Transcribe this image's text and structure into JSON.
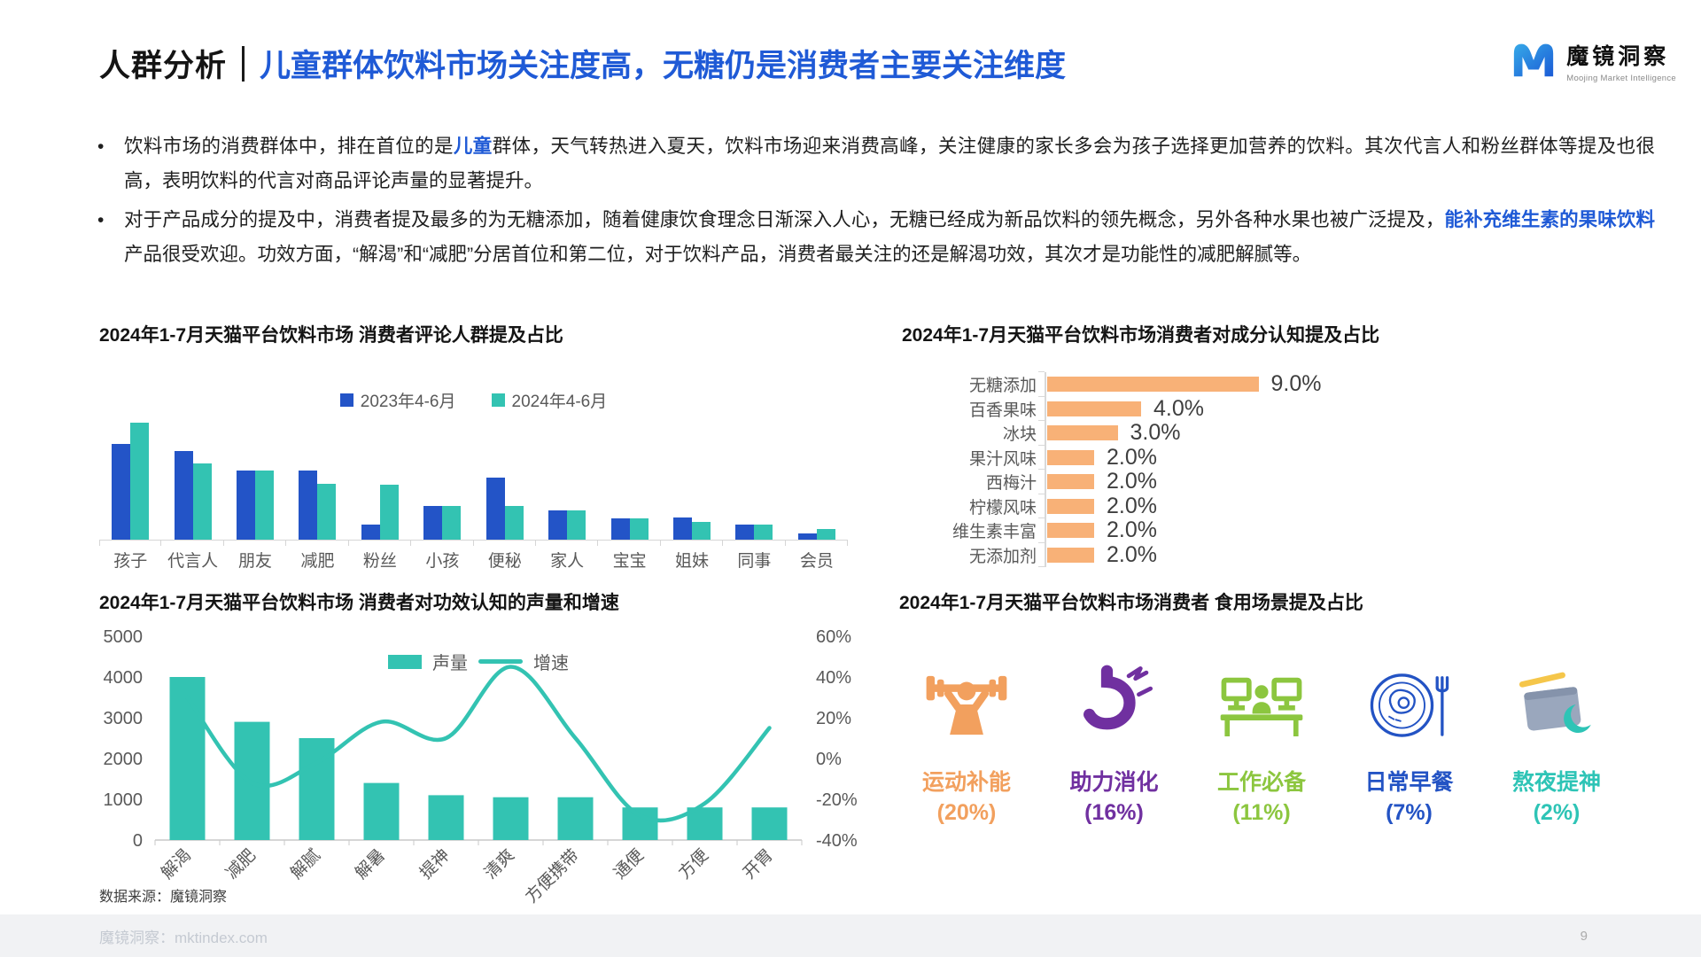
{
  "page": {
    "section_label": "人群分析",
    "title": "儿童群体饮料市场关注度高，无糖仍是消费者主要关注维度",
    "source_note": "数据来源：魔镜洞察",
    "footer_site": "魔镜洞察：mktindex.com",
    "page_number": "9"
  },
  "logo": {
    "name": "魔镜洞察",
    "subtitle": "Moojing Market Intelligence"
  },
  "colors": {
    "accent_blue": "#1F5AD6",
    "bar_blue": "#2354C7",
    "teal": "#33C3B2",
    "orange_bar": "#F8B177",
    "axis_gray": "#D9D9D9",
    "label_gray": "#595959"
  },
  "bullets": [
    {
      "segments": [
        {
          "text": "饮料市场的消费群体中，排在首位的是",
          "hl": false
        },
        {
          "text": "儿童",
          "hl": true
        },
        {
          "text": "群体，天气转热进入夏天，饮料市场迎来消费高峰，关注健康的家长多会为孩子选择更加营养的饮料。其次代言人和粉丝群体等提及也很高，表明饮料的代言对商品评论声量的显著提升。",
          "hl": false
        }
      ]
    },
    {
      "segments": [
        {
          "text": "对于产品成分的提及中，消费者提及最多的为无糖添加，随着健康饮食理念日渐深入人心，无糖已经成为新品饮料的领先概念，另外各种水果也被广泛提及，",
          "hl": false
        },
        {
          "text": "能补充维生素的果味饮料",
          "hl": true
        },
        {
          "text": "产品很受欢迎。功效方面，“解渴”和“减肥”分居首位和第二位，对于饮料产品，消费者最关注的还是解渴功效，其次才是功能性的减肥解腻等。",
          "hl": false
        }
      ]
    }
  ],
  "chart_data": [
    {
      "type": "bar",
      "title": "2024年1-7月天猫平台饮料市场 消费者评论人群提及占比",
      "categories": [
        "孩子",
        "代言人",
        "朋友",
        "减肥",
        "粉丝",
        "小孩",
        "便秘",
        "家人",
        "宝宝",
        "姐妹",
        "同事",
        "会员"
      ],
      "series": [
        {
          "name": "2023年4-6月",
          "color": "#2354C7",
          "values": [
            82,
            76,
            59,
            59,
            13,
            29,
            53,
            25,
            18,
            19,
            13,
            5
          ]
        },
        {
          "name": "2024年4-6月",
          "color": "#33C3B2",
          "values": [
            100,
            65,
            59,
            48,
            47,
            29,
            29,
            25,
            18,
            15,
            13,
            9
          ]
        }
      ],
      "note": "relative mention share, no value axis shown",
      "legend_position": "top-center"
    },
    {
      "type": "bar-horizontal",
      "title": "2024年1-7月天猫平台饮料市场消费者对成分认知提及占比",
      "categories": [
        "无糖添加",
        "百香果味",
        "冰块",
        "果汁风味",
        "西梅汁",
        "柠檬风味",
        "维生素丰富",
        "无添加剂"
      ],
      "values": [
        9.0,
        4.0,
        3.0,
        2.0,
        2.0,
        2.0,
        2.0,
        2.0
      ],
      "labels": [
        "9.0%",
        "4.0%",
        "3.0%",
        "2.0%",
        "2.0%",
        "2.0%",
        "2.0%",
        "2.0%"
      ],
      "color": "#F8B177",
      "xlim": [
        0,
        10
      ]
    },
    {
      "type": "combo",
      "title": "2024年1-7月天猫平台饮料市场 消费者对功效认知的声量和增速",
      "categories": [
        "解渴",
        "减肥",
        "解腻",
        "解暑",
        "提神",
        "清爽",
        "方便携带",
        "通便",
        "方便",
        "开胃"
      ],
      "bar_series": {
        "name": "声量",
        "color": "#33C3B2",
        "values": [
          4000,
          2900,
          2500,
          1400,
          1100,
          1050,
          1050,
          800,
          800,
          800
        ]
      },
      "line_series": {
        "name": "增速",
        "color": "#33C3B2",
        "values": [
          30,
          -12,
          -2,
          18,
          10,
          45,
          10,
          -28,
          -22,
          15
        ]
      },
      "left_axis": {
        "min": 0,
        "max": 5000,
        "ticks": [
          5000,
          4000,
          3000,
          2000,
          1000,
          0
        ]
      },
      "right_axis": {
        "min": -40,
        "max": 60,
        "tick_labels": [
          "60%",
          "40%",
          "20%",
          "0%",
          "-20%",
          "-40%"
        ],
        "tick_values": [
          60,
          40,
          20,
          0,
          -20,
          -40
        ]
      },
      "legend_position": "top-center"
    },
    {
      "type": "pictogram",
      "title": "2024年1-7月天猫平台饮料市场消费者 食用场景提及占比",
      "items": [
        {
          "label": "运动补能",
          "pct": "(20%)",
          "value": 20,
          "color": "#F2A05E",
          "icon": "weightlifting-icon"
        },
        {
          "label": "助力消化",
          "pct": "(16%)",
          "value": 16,
          "color": "#7030A0",
          "icon": "digestion-icon"
        },
        {
          "label": "工作必备",
          "pct": "(11%)",
          "value": 11,
          "color": "#8CC63F",
          "icon": "workstation-icon"
        },
        {
          "label": "日常早餐",
          "pct": "(7%)",
          "value": 7,
          "color": "#2353C4",
          "icon": "breakfast-icon"
        },
        {
          "label": "熬夜提神",
          "pct": "(2%)",
          "value": 2,
          "color": "#2EC4B6",
          "icon": "night-notebook-icon"
        }
      ]
    }
  ]
}
